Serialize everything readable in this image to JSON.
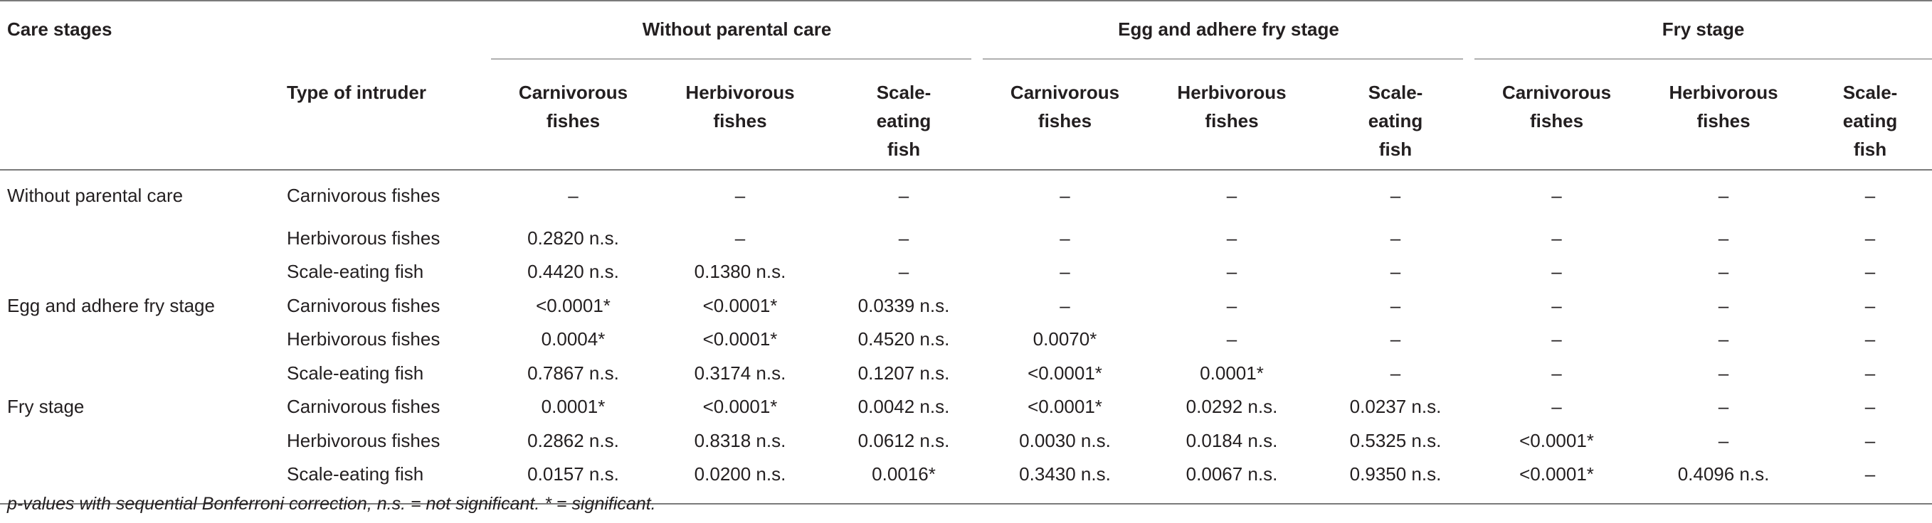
{
  "header": {
    "care_stages": "Care stages",
    "type_of_intruder": "Type of intruder",
    "groups": [
      "Without parental care",
      "Egg and adhere fry stage",
      "Fry stage"
    ],
    "sub_columns": [
      [
        "Carnivorous",
        "fishes"
      ],
      [
        "Herbivorous",
        "fishes"
      ],
      [
        "Scale-",
        "eating",
        "fish"
      ]
    ]
  },
  "rows": [
    {
      "stage": "Without parental care",
      "intruder": "Carnivorous fishes",
      "values": [
        "–",
        "–",
        "–",
        "–",
        "–",
        "–",
        "–",
        "–",
        "–"
      ]
    },
    {
      "stage": "",
      "intruder": "Herbivorous fishes",
      "values": [
        "0.2820 n.s.",
        "–",
        "–",
        "–",
        "–",
        "–",
        "–",
        "–",
        "–"
      ]
    },
    {
      "stage": "",
      "intruder": "Scale-eating fish",
      "values": [
        "0.4420 n.s.",
        "0.1380 n.s.",
        "–",
        "–",
        "–",
        "–",
        "–",
        "–",
        "–"
      ]
    },
    {
      "stage": "Egg and adhere fry stage",
      "intruder": "Carnivorous fishes",
      "values": [
        "<0.0001*",
        "<0.0001*",
        "0.0339 n.s.",
        "–",
        "–",
        "–",
        "–",
        "–",
        "–"
      ]
    },
    {
      "stage": "",
      "intruder": "Herbivorous fishes",
      "values": [
        "0.0004*",
        "<0.0001*",
        "0.4520 n.s.",
        "0.0070*",
        "–",
        "–",
        "–",
        "–",
        "–"
      ]
    },
    {
      "stage": "",
      "intruder": "Scale-eating fish",
      "values": [
        "0.7867 n.s.",
        "0.3174 n.s.",
        "0.1207 n.s.",
        "<0.0001*",
        "0.0001*",
        "–",
        "–",
        "–",
        "–"
      ]
    },
    {
      "stage": "Fry stage",
      "intruder": "Carnivorous fishes",
      "values": [
        "0.0001*",
        "<0.0001*",
        "0.0042 n.s.",
        "<0.0001*",
        "0.0292 n.s.",
        "0.0237 n.s.",
        "–",
        "–",
        "–"
      ]
    },
    {
      "stage": "",
      "intruder": "Herbivorous fishes",
      "values": [
        "0.2862 n.s.",
        "0.8318 n.s.",
        "0.0612 n.s.",
        "0.0030 n.s.",
        "0.0184 n.s.",
        "0.5325 n.s.",
        "<0.0001*",
        "–",
        "–"
      ]
    },
    {
      "stage": "",
      "intruder": "Scale-eating fish",
      "values": [
        "0.0157 n.s.",
        "0.0200 n.s.",
        "0.0016*",
        "0.3430 n.s.",
        "0.0067 n.s.",
        "0.9350 n.s.",
        "<0.0001*",
        "0.4096 n.s.",
        "–"
      ]
    }
  ],
  "footnote": "p-values with sequential Bonferroni correction, n.s. = not significant. * = significant."
}
